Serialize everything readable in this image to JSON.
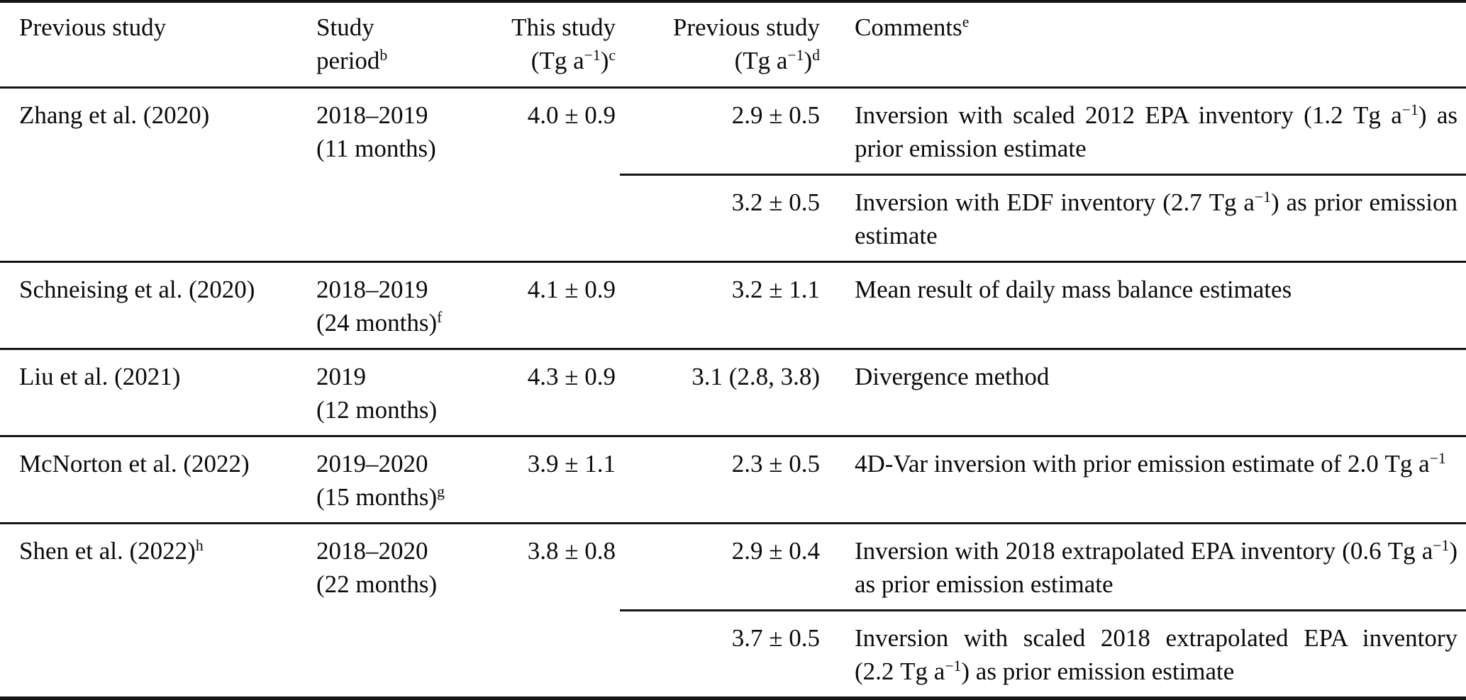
{
  "table": {
    "headers": [
      {
        "text": "Previous study"
      },
      {
        "line1": "Study",
        "line2": "period^{b}"
      },
      {
        "line1": "This study",
        "line2": "(Tg a^{−1})^{c}"
      },
      {
        "line1": "Previous study",
        "line2": "(Tg a^{−1})^{d}"
      },
      {
        "text": "Comments^{e}"
      }
    ],
    "rows": [
      {
        "study": "Zhang et al. (2020)",
        "period_line1": "2018–2019",
        "period_line2": "(11 months)",
        "this_study": "4.0 ± 0.9",
        "entries": [
          {
            "previous": "2.9 ± 0.5",
            "comment": "Inversion with scaled 2012 EPA inventory (1.2~Tg~a^{−1}) as prior emission estimate"
          },
          {
            "previous": "3.2 ± 0.5",
            "comment": "Inversion with EDF inventory (2.7~Tg~a^{−1}) as prior emission estimate"
          }
        ]
      },
      {
        "study": "Schneising et al. (2020)",
        "period_line1": "2018–2019",
        "period_line2": "(24 months)^{f}",
        "this_study": "4.1 ± 0.9",
        "entries": [
          {
            "previous": "3.2 ± 1.1",
            "comment": "Mean result of daily mass balance estimates"
          }
        ]
      },
      {
        "study": "Liu et al. (2021)",
        "period_line1": "2019",
        "period_line2": "(12 months)",
        "this_study": "4.3 ± 0.9",
        "entries": [
          {
            "previous": "3.1 (2.8, 3.8)",
            "comment": "Divergence method"
          }
        ]
      },
      {
        "study": "McNorton et al. (2022)",
        "period_line1": "2019–2020",
        "period_line2": "(15 months)^{g}",
        "this_study": "3.9 ± 1.1",
        "entries": [
          {
            "previous": "2.3 ± 0.5",
            "comment": "4D-Var inversion with prior emission estimate of 2.0~Tg~a^{−1}"
          }
        ]
      },
      {
        "study": "Shen et al. (2022)^{h}",
        "period_line1": "2018–2020",
        "period_line2": "(22 months)",
        "this_study": "3.8 ± 0.8",
        "entries": [
          {
            "previous": "2.9 ± 0.4",
            "comment": "Inversion with 2018 extrapolated EPA inventory (0.6~Tg~a^{−1}) as prior emission estimate"
          },
          {
            "previous": "3.7 ± 0.5",
            "comment": "Inversion with scaled 2018 extrapolated EPA inventory (2.2~Tg~a^{−1}) as prior emission estimate"
          }
        ]
      }
    ]
  }
}
